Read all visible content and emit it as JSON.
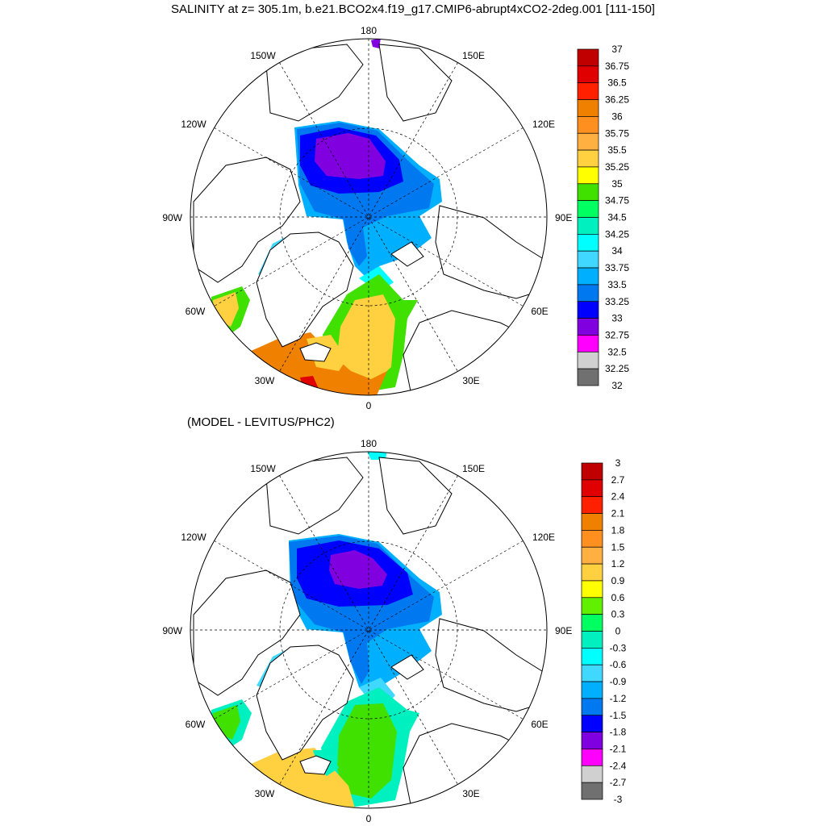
{
  "title": "SALINITY at z= 305.1m, b.e21.BCO2x4.f19_g17.CMIP6-abrupt4xCO2-2deg.001 [111-150]",
  "subtitle": "(MODEL - LEVITUS/PHC2)",
  "longitude_labels": {
    "top": "180",
    "bottom": "0",
    "left": "90W",
    "right": "90E",
    "upper_left_1": "150W",
    "upper_left_2": "120W",
    "upper_right_1": "150E",
    "upper_right_2": "120E",
    "lower_left_1": "60W",
    "lower_left_2": "30W",
    "lower_right_1": "60E",
    "lower_right_2": "30E"
  },
  "colorbar_top": {
    "labels": [
      "37",
      "36.75",
      "36.5",
      "36.25",
      "36",
      "35.75",
      "35.5",
      "35.25",
      "35",
      "34.75",
      "34.5",
      "34.25",
      "34",
      "33.75",
      "33.5",
      "33.25",
      "33",
      "32.75",
      "32.5",
      "32.25",
      "32"
    ],
    "colors": [
      "#c00000",
      "#e00000",
      "#ff2000",
      "#f08000",
      "#ff9020",
      "#ffb040",
      "#ffd040",
      "#ffff00",
      "#40e000",
      "#00ff60",
      "#00f0c0",
      "#00ffff",
      "#40d8ff",
      "#00b0ff",
      "#0078f0",
      "#0000ff",
      "#8000e0",
      "#ff00ff",
      "#d0d0d0",
      "#707070"
    ]
  },
  "colorbar_bottom": {
    "labels": [
      "3",
      "2.7",
      "2.4",
      "2.1",
      "1.8",
      "1.5",
      "1.2",
      "0.9",
      "0.6",
      "0.3",
      "0",
      "-0.3",
      "-0.6",
      "-0.9",
      "-1.2",
      "-1.5",
      "-1.8",
      "-2.1",
      "-2.4",
      "-2.7",
      "-3"
    ],
    "colors": [
      "#c00000",
      "#e00000",
      "#ff2000",
      "#f08000",
      "#ff9020",
      "#ffb040",
      "#ffd040",
      "#ffff00",
      "#60f000",
      "#00ff60",
      "#00f0c0",
      "#00ffff",
      "#40d8ff",
      "#00b0ff",
      "#0078f0",
      "#0000ff",
      "#8000e0",
      "#ff00ff",
      "#d0d0d0",
      "#707070"
    ]
  },
  "map_fields": {
    "top": {
      "canada_basin": 32.8,
      "beaufort_rim": 33.2,
      "eurasian_basin": 33.6,
      "greenland_sea": 35.1,
      "norwegian_sea": 35.3,
      "labrador_sea": 35.2,
      "north_atlantic": 36.1,
      "subtropical_max": 36.8
    },
    "bottom": {
      "canada_basin": -1.9,
      "beaufort_rim": -1.6,
      "eurasian_basin": -1.1,
      "greenland_sea": -0.1,
      "norwegian_sea": 0.5,
      "labrador_sea": 0.4,
      "north_atlantic": 1.0
    }
  }
}
